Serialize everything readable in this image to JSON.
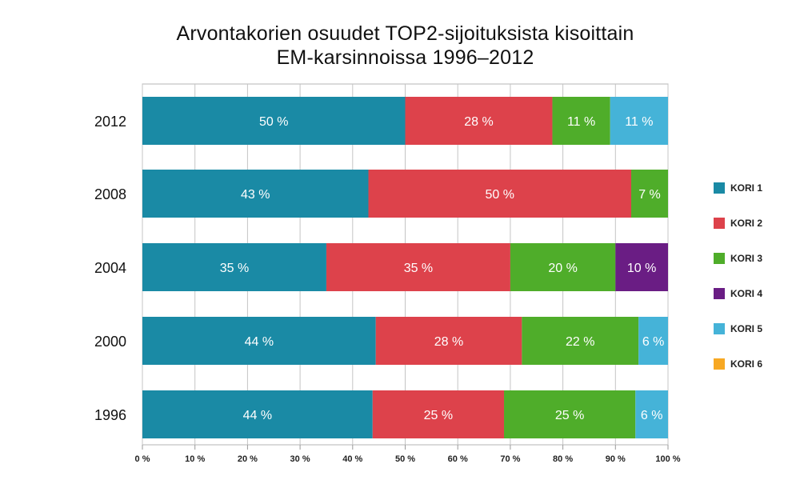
{
  "chart_data": {
    "type": "bar",
    "orientation": "horizontal",
    "stacked": true,
    "title": "Arvontakorien osuudet TOP2-sijoituksista kisoittain",
    "subtitle": "EM-karsinnoissa 1996–2012",
    "categories": [
      "2012",
      "2008",
      "2004",
      "2000",
      "1996"
    ],
    "xlim": [
      0,
      100
    ],
    "x_ticks": [
      "0 %",
      "10 %",
      "20 %",
      "30 %",
      "40 %",
      "50 %",
      "60 %",
      "70 %",
      "80 %",
      "90 %",
      "100 %"
    ],
    "grid": true,
    "legend_position": "right",
    "series": [
      {
        "name": "KORI 1",
        "color": "#1a8aa5",
        "values": [
          50,
          43,
          35,
          44.4,
          43.8
        ],
        "labels": [
          "50 %",
          "43 %",
          "35 %",
          "44 %",
          "44 %"
        ]
      },
      {
        "name": "KORI 2",
        "color": "#dd424b",
        "values": [
          28,
          50,
          35,
          27.8,
          25
        ],
        "labels": [
          "28 %",
          "50 %",
          "35 %",
          "28 %",
          "25 %"
        ]
      },
      {
        "name": "KORI 3",
        "color": "#4fad2a",
        "values": [
          11,
          7,
          20,
          22.2,
          25
        ],
        "labels": [
          "11 %",
          "7 %",
          "20 %",
          "22 %",
          "25 %"
        ]
      },
      {
        "name": "KORI 4",
        "color": "#6a1d84",
        "values": [
          0,
          0,
          10,
          0,
          0
        ],
        "labels": [
          "",
          "",
          "10 %",
          "",
          ""
        ]
      },
      {
        "name": "KORI 5",
        "color": "#45b3d8",
        "values": [
          11,
          0,
          0,
          5.6,
          6.2
        ],
        "labels": [
          "11 %",
          "",
          "",
          "6 %",
          "6 %"
        ]
      },
      {
        "name": "KORI 6",
        "color": "#f7a823",
        "values": [
          0,
          0,
          0,
          0,
          0
        ],
        "labels": [
          "",
          "",
          "",
          "",
          ""
        ]
      }
    ]
  }
}
